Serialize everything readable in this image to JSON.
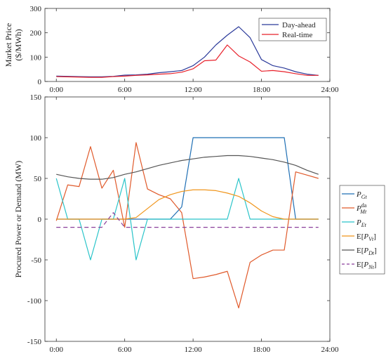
{
  "chart_data": [
    {
      "type": "line",
      "title": "",
      "xlabel": "",
      "ylabel_line1": "Market Price",
      "ylabel_line2": "($/MWh)",
      "xlim": [
        -1,
        24
      ],
      "ylim": [
        0,
        300
      ],
      "yticks": [
        0,
        100,
        200,
        300
      ],
      "xticks": [
        0,
        6,
        12,
        18,
        24
      ],
      "xticklabels": [
        "0:00",
        "6:00",
        "12:00",
        "18:00",
        "24:00"
      ],
      "legend_position": "top-right",
      "x": [
        0,
        1,
        2,
        3,
        4,
        5,
        6,
        7,
        8,
        9,
        10,
        11,
        12,
        13,
        14,
        15,
        16,
        17,
        18,
        19,
        20,
        21,
        22,
        23
      ],
      "series": [
        {
          "name": "Day-ahead",
          "color": "#2b3a9a",
          "values": [
            22,
            21,
            20,
            19,
            19,
            21,
            26,
            27,
            30,
            36,
            40,
            45,
            65,
            100,
            150,
            190,
            225,
            180,
            90,
            65,
            55,
            40,
            30,
            25
          ]
        },
        {
          "name": "Real-time",
          "color": "#e8202a",
          "values": [
            20,
            19,
            18,
            17,
            17,
            20,
            22,
            25,
            27,
            30,
            32,
            38,
            52,
            85,
            88,
            150,
            105,
            80,
            42,
            45,
            40,
            32,
            25,
            25
          ]
        }
      ]
    },
    {
      "type": "line",
      "title": "",
      "xlabel": "",
      "ylabel": "Procured Power or Demand (MW)",
      "xlim": [
        -1,
        24
      ],
      "ylim": [
        -150,
        150
      ],
      "yticks": [
        -150,
        -100,
        -50,
        0,
        50,
        100,
        150
      ],
      "xticks": [
        0,
        6,
        12,
        18,
        24
      ],
      "xticklabels": [
        "0:00",
        "6:00",
        "12:00",
        "18:00",
        "24:00"
      ],
      "legend_position": "outside-right",
      "x": [
        0,
        1,
        2,
        3,
        4,
        5,
        6,
        7,
        8,
        9,
        10,
        11,
        12,
        13,
        14,
        15,
        16,
        17,
        18,
        19,
        20,
        21,
        22,
        23
      ],
      "series": [
        {
          "name": "P_Gt",
          "label_main": "P",
          "label_sub": "Gt",
          "label_sup": "",
          "prefix": "",
          "suffix": "",
          "color": "#1f6fb4",
          "dash": "",
          "values": [
            0,
            0,
            0,
            0,
            0,
            0,
            0,
            0,
            0,
            0,
            0,
            15,
            100,
            100,
            100,
            100,
            100,
            100,
            100,
            100,
            100,
            0,
            0,
            0
          ]
        },
        {
          "name": "P_Mt^da",
          "label_main": "P",
          "label_sub": "Mt",
          "label_sup": "da",
          "prefix": "",
          "suffix": "",
          "color": "#e05a2b",
          "dash": "",
          "values": [
            -2,
            42,
            40,
            89,
            38,
            60,
            -10,
            94,
            37,
            30,
            25,
            8,
            -73,
            -71,
            -68,
            -64,
            -109,
            -53,
            -44,
            -38,
            -38,
            58,
            54,
            50
          ]
        },
        {
          "name": "P_Et",
          "label_main": "P",
          "label_sub": "Et",
          "label_sup": "",
          "prefix": "",
          "suffix": "",
          "color": "#29c4c9",
          "dash": "",
          "values": [
            50,
            0,
            0,
            -50,
            0,
            0,
            50,
            -50,
            0,
            0,
            0,
            0,
            0,
            0,
            0,
            0,
            50,
            0,
            0,
            0,
            0,
            0,
            0,
            0
          ]
        },
        {
          "name": "E[P_Vt]",
          "label_main": "P",
          "label_sub": "Vt",
          "label_sup": "",
          "prefix": "E[",
          "suffix": "]",
          "color": "#f0951b",
          "dash": "",
          "values": [
            0,
            0,
            0,
            0,
            0,
            0,
            0,
            2,
            13,
            24,
            30,
            34,
            36,
            36,
            35,
            32,
            28,
            20,
            10,
            3,
            0,
            0,
            0,
            0
          ]
        },
        {
          "name": "E[P_Dt]",
          "label_main": "P",
          "label_sub": "Dt",
          "label_sup": "",
          "prefix": "E[",
          "suffix": "]",
          "color": "#555555",
          "dash": "",
          "values": [
            55,
            52,
            50,
            49,
            49,
            51,
            55,
            58,
            62,
            66,
            69,
            72,
            74,
            76,
            77,
            78,
            78,
            77,
            75,
            73,
            70,
            66,
            60,
            55
          ]
        },
        {
          "name": "E[P_Nt]",
          "label_main": "P",
          "label_sub": "Nt",
          "label_sup": "",
          "prefix": "E[",
          "suffix": "]",
          "color": "#8a3f9a",
          "dash": "6,4",
          "values": [
            -10,
            -10,
            -10,
            -10,
            -10,
            8,
            -10,
            -10,
            -10,
            -10,
            -10,
            -10,
            -10,
            -10,
            -10,
            -10,
            -10,
            -10,
            -10,
            -10,
            -10,
            -10,
            -10,
            -10
          ]
        }
      ]
    }
  ]
}
